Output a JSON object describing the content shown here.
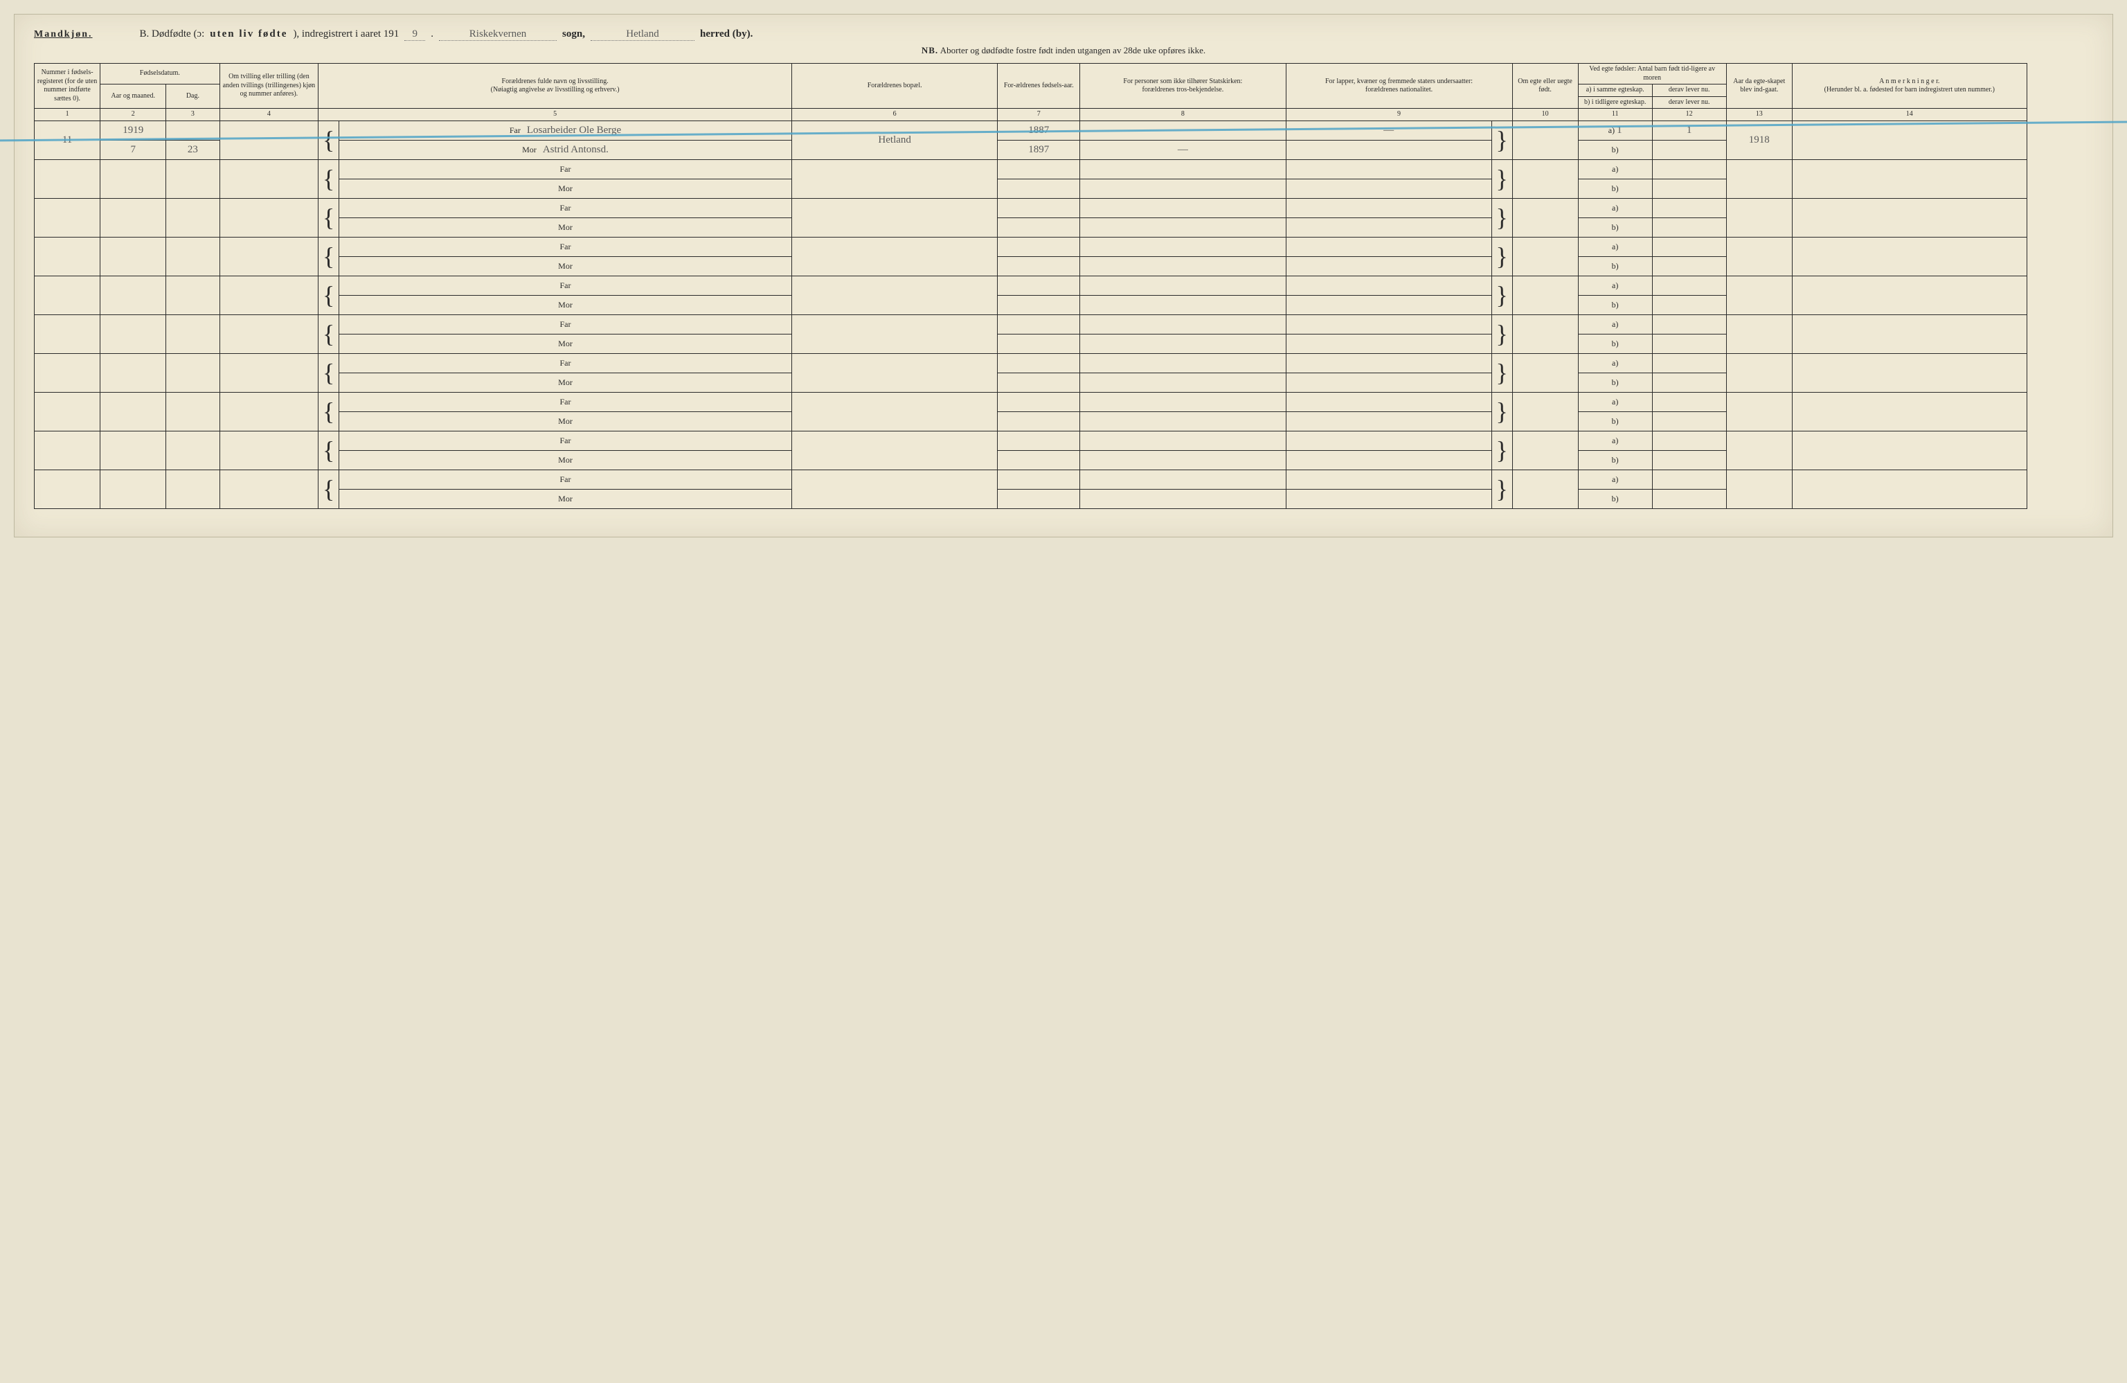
{
  "header": {
    "gender": "Mandkjøn.",
    "title_prefix": "B. Dødfødte (ɔ:",
    "title_emph": "uten liv fødte",
    "title_mid": "), indregistrert i aaret 191",
    "year_digit": "9",
    "sogn_value": "Riskekvernen",
    "sogn_label": "sogn,",
    "herred_value": "Hetland",
    "herred_label": "herred (by).",
    "nb_prefix": "NB.",
    "nb_text": "Aborter og dødfødte fostre født inden utgangen av 28de uke opføres ikke."
  },
  "columns": {
    "c1": "Nummer i fødsels-registeret (for de uten nummer indførte sættes 0).",
    "c23_group": "Fødselsdatum.",
    "c2": "Aar og maaned.",
    "c3": "Dag.",
    "c4": "Om tvilling eller trilling (den anden tvillings (trillingenes) kjøn og nummer anføres).",
    "c5a": "Forældrenes fulde navn og livsstilling.",
    "c5b": "(Nøiagtig angivelse av livsstilling og erhverv.)",
    "c6": "Forældrenes bopæl.",
    "c7": "For-ældrenes fødsels-aar.",
    "c8a": "For personer som ikke tilhører Statskirken:",
    "c8b": "forældrenes tros-bekjendelse.",
    "c9a": "For lapper, kvæner og fremmede staters undersaatter:",
    "c9b": "forældrenes nationalitet.",
    "c10": "Om egte eller uegte født.",
    "c1112_group": "Ved egte fødsler: Antal barn født tid-ligere av moren",
    "c11a": "a) i samme egteskap.",
    "c11b": "b) i tidligere egteskap.",
    "c12a": "derav lever nu.",
    "c12b": "derav lever nu.",
    "c13": "Aar da egte-skapet blev ind-gaat.",
    "c14a": "A n m e r k n i n g e r.",
    "c14b": "(Herunder bl. a. fødested for barn indregistrert uten nummer.)",
    "far": "Far",
    "mor": "Mor",
    "a_label": "a)",
    "b_label": "b)",
    "nums": [
      "1",
      "2",
      "3",
      "4",
      "5",
      "6",
      "7",
      "8",
      "9",
      "10",
      "11",
      "12",
      "13",
      "14"
    ]
  },
  "entry": {
    "number": "11",
    "year_month": "1919",
    "day_month": "7",
    "day": "23",
    "far_name": "Losarbeider Ole Berge",
    "mor_name": "Astrid Antonsd.",
    "bopael": "Hetland",
    "far_year": "1887",
    "mor_year": "1897",
    "dash": "—",
    "col11a": "1",
    "col12a": "1",
    "col13": "1918"
  },
  "style": {
    "page_bg": "#efe9d5",
    "border": "#2a2a2a",
    "hand_color": "#5a5a5a",
    "strike_color": "#4fa3c7"
  }
}
